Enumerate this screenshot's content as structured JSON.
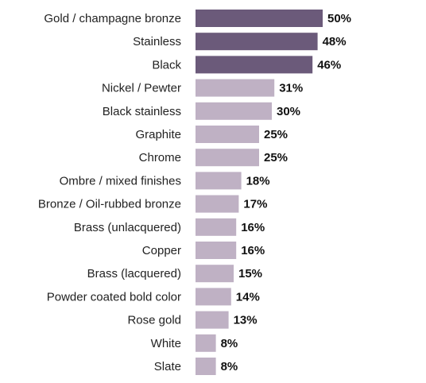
{
  "chart_data": {
    "type": "bar",
    "orientation": "horizontal",
    "categories": [
      "Gold / champagne bronze",
      "Stainless",
      "Black",
      "Nickel / Pewter",
      "Black stainless",
      "Graphite",
      "Chrome",
      "Ombre / mixed finishes",
      "Bronze / Oil-rubbed bronze",
      "Brass (unlacquered)",
      "Copper",
      "Brass (lacquered)",
      "Powder coated bold color",
      "Rose gold",
      "White",
      "Slate"
    ],
    "values": [
      50,
      48,
      46,
      31,
      30,
      25,
      25,
      18,
      17,
      16,
      16,
      15,
      14,
      13,
      8,
      8
    ],
    "value_labels": [
      "50%",
      "48%",
      "46%",
      "31%",
      "30%",
      "25%",
      "25%",
      "18%",
      "17%",
      "16%",
      "16%",
      "15%",
      "14%",
      "13%",
      "8%",
      "8%"
    ],
    "highlight_count": 3,
    "colors": {
      "highlight": "#6b5a7a",
      "normal": "#bfb1c4"
    },
    "title": "",
    "xlabel": "",
    "ylabel": "",
    "xlim": [
      0,
      50
    ],
    "grid": false,
    "legend": "none"
  }
}
